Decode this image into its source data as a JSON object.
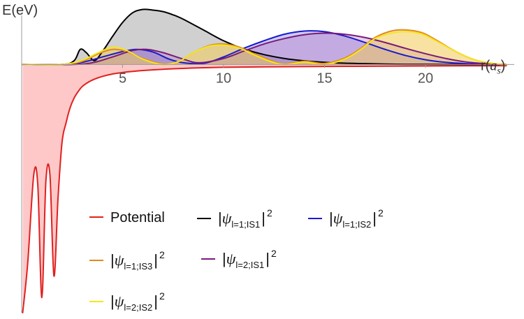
{
  "chart_data": {
    "type": "area",
    "title": "",
    "xlabel": "r(a_s)",
    "ylabel": "E(eV)",
    "xlim": [
      0,
      24.6
    ],
    "ylim": [
      -11.5,
      2.6
    ],
    "x_ticks": [
      5,
      10,
      15,
      20
    ],
    "x_tick_labels": [
      "5",
      "10",
      "15",
      "20"
    ],
    "grid": false,
    "legend_position": "lower-center-inside",
    "series": [
      {
        "id": "potential",
        "name": "Potential",
        "legend_label": {
          "prefix": "Potential",
          "psi": "",
          "sub": "",
          "sup": ""
        },
        "color": "#e02020",
        "fill": "#ffc8c8",
        "x": [
          0.05,
          0.3,
          0.6,
          0.8,
          1.0,
          1.2,
          1.4,
          1.6,
          1.8,
          2.0,
          2.2,
          2.4,
          2.6,
          2.8,
          3.0,
          3.3,
          3.6,
          4.0,
          4.5,
          5.0,
          5.5,
          6.0,
          7.0,
          8.0,
          9.0,
          10.0,
          12.0,
          14.0,
          16.0,
          18.0,
          20.0,
          22.0,
          24.0
        ],
        "y": [
          -11.5,
          -9.2,
          -5.1,
          -5.6,
          -10.8,
          -5.4,
          -5.1,
          -9.8,
          -6.2,
          -3.6,
          -2.7,
          -2.0,
          -1.55,
          -1.25,
          -1.02,
          -0.82,
          -0.68,
          -0.55,
          -0.44,
          -0.37,
          -0.32,
          -0.28,
          -0.22,
          -0.18,
          -0.15,
          -0.13,
          -0.11,
          -0.095,
          -0.085,
          -0.075,
          -0.068,
          -0.062,
          -0.057
        ]
      },
      {
        "id": "psi-l1-is1",
        "name": "|ψ_{l=1;IS1}|^2",
        "legend_label": {
          "prefix": "",
          "psi": "ψ",
          "sub": "l=1;IS1",
          "sup": "2"
        },
        "color": "#000000",
        "fill": "rgba(120,120,120,0.35)",
        "x": [
          0.05,
          2.0,
          2.6,
          2.9,
          3.2,
          3.6,
          4.0,
          4.5,
          5.0,
          5.5,
          6.0,
          6.5,
          7.0,
          7.5,
          8.0,
          9.0,
          10.0,
          11.0,
          12.0,
          13.0,
          14.0,
          15.0,
          16.0,
          17.0,
          18.0,
          19.0,
          20.0,
          22.0,
          24.0
        ],
        "y": [
          0,
          0,
          0.18,
          0.7,
          0.55,
          0.18,
          0.6,
          1.3,
          1.95,
          2.4,
          2.55,
          2.52,
          2.45,
          2.3,
          2.1,
          1.6,
          1.1,
          0.72,
          0.46,
          0.28,
          0.17,
          0.1,
          0.06,
          0.04,
          0.02,
          0.01,
          0.01,
          0,
          0
        ]
      },
      {
        "id": "psi-l1-is2",
        "name": "|ψ_{l=1;IS2}|^2",
        "legend_label": {
          "prefix": "",
          "psi": "ψ",
          "sub": "l=1;IS2",
          "sup": "2"
        },
        "color": "#1a1acc",
        "fill": "rgba(110,110,235,0.35)",
        "x": [
          0.05,
          2.0,
          3.0,
          4.0,
          5.0,
          5.7,
          6.5,
          7.3,
          8.0,
          9.0,
          10.0,
          11.0,
          12.0,
          13.0,
          14.0,
          15.0,
          16.0,
          17.0,
          18.0,
          19.0,
          20.0,
          21.0,
          22.0,
          23.0,
          24.0
        ],
        "y": [
          0,
          0,
          0.1,
          0.35,
          0.6,
          0.7,
          0.58,
          0.25,
          0.08,
          0.05,
          0.35,
          0.75,
          1.1,
          1.4,
          1.55,
          1.52,
          1.32,
          1.02,
          0.7,
          0.42,
          0.22,
          0.1,
          0.04,
          0.01,
          0
        ]
      },
      {
        "id": "psi-l1-is3",
        "name": "|ψ_{l=1;IS3}|^2",
        "legend_label": {
          "prefix": "",
          "psi": "ψ",
          "sub": "l=1;IS3",
          "sup": "2"
        },
        "color": "#e08a1e",
        "fill": "rgba(236,170,100,0.35)",
        "x": [
          0.05,
          2.0,
          3.0,
          3.8,
          4.5,
          5.2,
          6.0,
          7.0,
          7.8,
          8.5,
          9.3,
          10.0,
          10.8,
          11.5,
          12.3,
          13.0,
          14.0,
          15.0,
          16.0,
          16.8,
          17.5,
          18.3,
          19.0,
          19.8,
          20.5,
          21.5,
          22.5,
          23.5,
          24.0
        ],
        "y": [
          0,
          0,
          0.15,
          0.5,
          0.7,
          0.6,
          0.28,
          0.02,
          0.15,
          0.55,
          0.88,
          0.95,
          0.8,
          0.5,
          0.2,
          0.02,
          0.15,
          0.05,
          0.3,
          0.75,
          1.25,
          1.55,
          1.6,
          1.48,
          1.15,
          0.6,
          0.2,
          0.03,
          0
        ]
      },
      {
        "id": "psi-l2-is1",
        "name": "|ψ_{l=2;IS1}|^2",
        "legend_label": {
          "prefix": "",
          "psi": "ψ",
          "sub": "l=2;IS1",
          "sup": "2"
        },
        "color": "#7a1a7a",
        "fill": "rgba(175,95,175,0.3)",
        "x": [
          0.05,
          2.5,
          3.5,
          4.5,
          5.5,
          6.2,
          7.0,
          8.0,
          8.8,
          10.0,
          11.0,
          12.0,
          13.0,
          14.0,
          15.0,
          16.0,
          17.0,
          18.0,
          19.0,
          20.0,
          21.0,
          22.0,
          23.0,
          24.0
        ],
        "y": [
          0,
          0,
          0.08,
          0.35,
          0.65,
          0.7,
          0.55,
          0.25,
          0.08,
          0.28,
          0.62,
          0.95,
          1.2,
          1.38,
          1.45,
          1.4,
          1.25,
          1.02,
          0.75,
          0.5,
          0.28,
          0.12,
          0.04,
          0
        ]
      },
      {
        "id": "psi-l2-is2",
        "name": "|ψ_{l=2;IS2}|^2",
        "legend_label": {
          "prefix": "",
          "psi": "ψ",
          "sub": "l=2;IS2",
          "sup": "2"
        },
        "color": "#f5e61e",
        "fill": "rgba(250,230,90,0.35)",
        "x": [
          0.05,
          2.0,
          3.0,
          3.8,
          4.5,
          5.2,
          6.0,
          7.0,
          7.8,
          8.5,
          9.3,
          10.0,
          10.8,
          11.5,
          12.3,
          13.0,
          14.0,
          15.0,
          16.0,
          16.8,
          17.5,
          18.3,
          19.0,
          19.8,
          20.5,
          21.5,
          22.5,
          23.5,
          24.0
        ],
        "y": [
          0,
          0,
          0.2,
          0.55,
          0.8,
          0.65,
          0.25,
          0.0,
          0.15,
          0.55,
          0.85,
          0.9,
          0.75,
          0.45,
          0.15,
          0.0,
          0.1,
          0.0,
          0.25,
          0.7,
          1.2,
          1.45,
          1.52,
          1.42,
          1.1,
          0.6,
          0.2,
          0.03,
          0
        ]
      }
    ]
  }
}
